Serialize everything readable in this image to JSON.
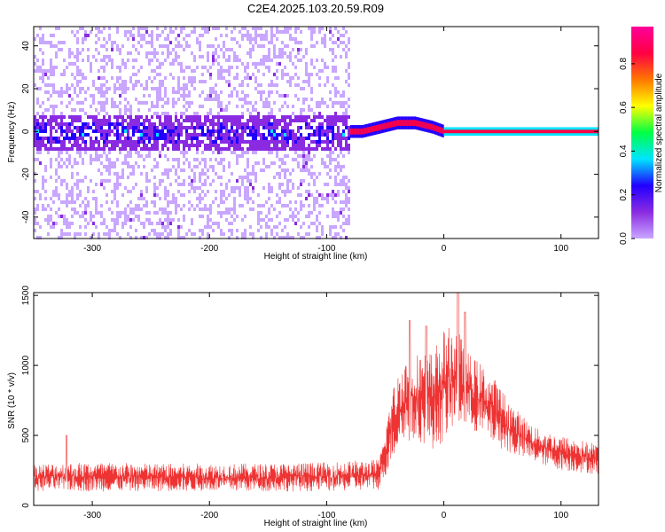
{
  "title": "C2E4.2025.103.20.59.R09",
  "chart_data": [
    {
      "type": "heatmap",
      "xlabel": "Height of straight line (km)",
      "ylabel": "Frequency (Hz)",
      "xlim": [
        -350,
        132
      ],
      "ylim": [
        -50,
        49
      ],
      "xticks": [
        -300,
        -200,
        -100,
        0,
        100
      ],
      "yticks": [
        -40,
        -20,
        0,
        20,
        40
      ],
      "colorbar": {
        "label": "Normalized spectral amplitude",
        "range": [
          0,
          0.97
        ],
        "ticks": [
          0.0,
          0.2,
          0.4,
          0.6,
          0.8
        ],
        "tick_labels": [
          "0.0",
          "0.2",
          "0.4",
          "0.6",
          "0.8"
        ],
        "colormap": [
          "#ffffff",
          "#c9a6ff",
          "#8a2be2",
          "#2200ff",
          "#00e5ff",
          "#00ff44",
          "#ffff00",
          "#ff7700",
          "#ff0044",
          "#ff0099"
        ]
      },
      "regions": [
        {
          "name": "broadband-noise",
          "x": [
            -350,
            -80
          ],
          "band_center_hz": 0,
          "band_halfwidth_hz": 8,
          "amplitude": 0.25
        },
        {
          "name": "transition",
          "x": [
            -80,
            0
          ],
          "center_hz": [
            0,
            0,
            2,
            4,
            4,
            2,
            0
          ],
          "amplitude": 0.85
        },
        {
          "name": "stable-line",
          "x": [
            0,
            132
          ],
          "center_hz": 0,
          "amplitude": 0.97
        }
      ]
    },
    {
      "type": "line",
      "xlabel": "Height of straight line (km)",
      "ylabel": "SNR (10 * v/v)",
      "xlim": [
        -350,
        132
      ],
      "ylim": [
        0,
        1520
      ],
      "xticks": [
        -300,
        -200,
        -100,
        0,
        100
      ],
      "yticks": [
        0,
        500,
        1000,
        1500
      ],
      "color": "#ee3333",
      "envelope": {
        "x": [
          -350,
          -300,
          -250,
          -200,
          -150,
          -100,
          -55,
          -45,
          -35,
          -20,
          -10,
          0,
          10,
          20,
          40,
          60,
          80,
          100,
          132
        ],
        "base": [
          100,
          100,
          100,
          100,
          100,
          100,
          110,
          300,
          450,
          450,
          400,
          450,
          550,
          550,
          450,
          350,
          300,
          250,
          220
        ],
        "peak": [
          300,
          310,
          300,
          300,
          300,
          310,
          330,
          800,
          1050,
          1100,
          1100,
          1250,
          1300,
          1100,
          950,
          700,
          550,
          500,
          440
        ]
      },
      "spikes": [
        {
          "x": -322,
          "y": 500
        },
        {
          "x": -29,
          "y": 1320
        },
        {
          "x": -15,
          "y": 1280
        },
        {
          "x": 12,
          "y": 1520
        },
        {
          "x": 18,
          "y": 1380
        }
      ]
    }
  ]
}
